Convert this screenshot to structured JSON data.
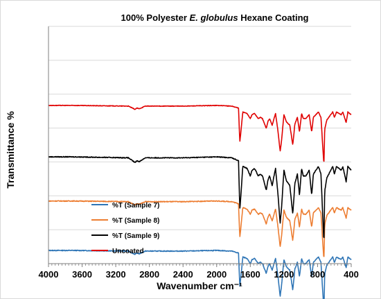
{
  "chart_data": {
    "type": "line",
    "title_parts": [
      "100% Polyester ",
      "E. globulus",
      " Hexane Coating"
    ],
    "xlabel": "Wavenumber cm⁻¹",
    "ylabel": "Transmittance %",
    "xlim": [
      4000,
      400
    ],
    "x_reversed": true,
    "x_ticks": [
      4000,
      3600,
      3200,
      2800,
      2400,
      2000,
      1600,
      1200,
      800,
      400
    ],
    "y_tick_labels_shown": false,
    "grid": "horizontal",
    "legend_position": "inside-lower-left",
    "series": [
      {
        "name": "%T (Sample 7)",
        "color": "#2E75B6",
        "baseline": 0.0,
        "scale": 1.0,
        "noise": 0.6
      },
      {
        "name": "%T (Sample 8)",
        "color": "#ED7D31",
        "baseline": 75.0,
        "scale": 1.0,
        "noise": 0.6
      },
      {
        "name": "%T (Sample 9)",
        "color": "#000000",
        "baseline": 142.0,
        "scale": 1.45,
        "noise": 0.6
      },
      {
        "name": "Uncoated",
        "color": "#E00000",
        "baseline": 220.0,
        "scale": 1.0,
        "noise": 0.4
      }
    ],
    "spectrum_profile": [
      [
        4000,
        0
      ],
      [
        3700,
        0
      ],
      [
        3050,
        1
      ],
      [
        2970,
        6
      ],
      [
        2950,
        4
      ],
      [
        2920,
        5
      ],
      [
        2850,
        1
      ],
      [
        2400,
        1
      ],
      [
        2000,
        0
      ],
      [
        1820,
        1
      ],
      [
        1740,
        4
      ],
      [
        1725,
        55
      ],
      [
        1710,
        38
      ],
      [
        1690,
        10
      ],
      [
        1640,
        12
      ],
      [
        1600,
        20
      ],
      [
        1580,
        14
      ],
      [
        1550,
        12
      ],
      [
        1505,
        20
      ],
      [
        1480,
        18
      ],
      [
        1455,
        20
      ],
      [
        1410,
        35
      ],
      [
        1390,
        24
      ],
      [
        1370,
        20
      ],
      [
        1340,
        30
      ],
      [
        1300,
        12
      ],
      [
        1270,
        40
      ],
      [
        1245,
        70
      ],
      [
        1230,
        55
      ],
      [
        1200,
        14
      ],
      [
        1170,
        25
      ],
      [
        1130,
        30
      ],
      [
        1095,
        60
      ],
      [
        1070,
        28
      ],
      [
        1040,
        18
      ],
      [
        1015,
        40
      ],
      [
        990,
        12
      ],
      [
        970,
        20
      ],
      [
        940,
        20
      ],
      [
        900,
        14
      ],
      [
        870,
        40
      ],
      [
        850,
        18
      ],
      [
        790,
        10
      ],
      [
        760,
        18
      ],
      [
        725,
        90
      ],
      [
        715,
        36
      ],
      [
        690,
        22
      ],
      [
        620,
        10
      ],
      [
        600,
        18
      ],
      [
        575,
        10
      ],
      [
        520,
        14
      ],
      [
        500,
        10
      ],
      [
        460,
        26
      ],
      [
        440,
        10
      ],
      [
        400,
        14
      ]
    ]
  }
}
